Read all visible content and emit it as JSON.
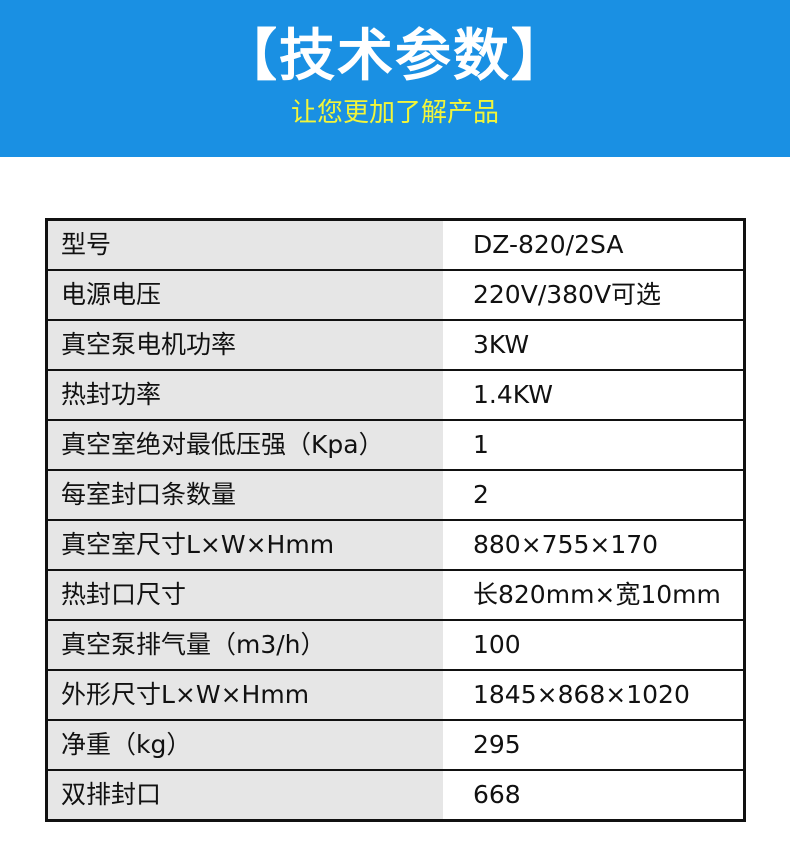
{
  "header": {
    "title": "【技术参数】",
    "subtitle": "让您更加了解产品",
    "bg_color": "#1a90e3",
    "subtitle_color": "#f2f53a"
  },
  "specs": [
    {
      "label": "型号",
      "value": "DZ-820/2SA"
    },
    {
      "label": "电源电压",
      "value": "220V/380V可选"
    },
    {
      "label": "真空泵电机功率",
      "value": "3KW"
    },
    {
      "label": "热封功率",
      "value": "1.4KW"
    },
    {
      "label": "真空室绝对最低压强（Kpa）",
      "value": "1"
    },
    {
      "label": "每室封口条数量",
      "value": "2"
    },
    {
      "label": "真空室尺寸L×W×Hmm",
      "value": "880×755×170"
    },
    {
      "label": "热封口尺寸",
      "value": "长820mm×宽10mm"
    },
    {
      "label": "真空泵排气量（m3/h）",
      "value": "100"
    },
    {
      "label": "外形尺寸L×W×Hmm",
      "value": "1845×868×1020"
    },
    {
      "label": "净重（kg）",
      "value": "295"
    },
    {
      "label": "双排封口",
      "value": "668"
    }
  ]
}
